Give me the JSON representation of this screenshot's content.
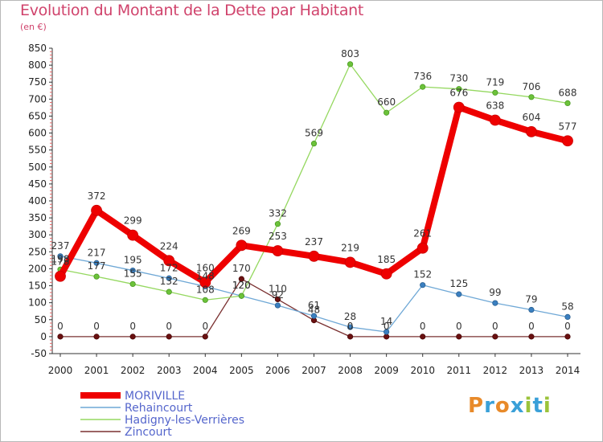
{
  "header": {
    "title": "Evolution du Montant de la Dette par Habitant",
    "unit": "(en €)"
  },
  "logo": {
    "letters": [
      "P",
      "r",
      "o",
      "x",
      "i",
      "t",
      "i"
    ],
    "colors": [
      "#e88a2a",
      "#3aa0d8",
      "#e88a2a",
      "#3aa0d8",
      "#9bc33b",
      "#3aa0d8",
      "#9bc33b"
    ]
  },
  "chart_data": {
    "type": "line",
    "title": "Evolution du Montant de la Dette par Habitant",
    "ylabel": "(en €)",
    "x": [
      2000,
      2001,
      2002,
      2003,
      2004,
      2005,
      2006,
      2007,
      2008,
      2009,
      2010,
      2011,
      2012,
      2013,
      2014
    ],
    "ylim": [
      -50,
      850
    ],
    "yticks": [
      -50,
      0,
      50,
      100,
      150,
      200,
      250,
      300,
      350,
      400,
      450,
      500,
      550,
      600,
      650,
      700,
      750,
      800,
      850
    ],
    "grid": false,
    "legend_position": "bottom-left",
    "series": [
      {
        "name": "MORIVILLE",
        "color": "#ee0000",
        "values": [
          178,
          372,
          299,
          224,
          160,
          269,
          253,
          237,
          219,
          185,
          261,
          676,
          638,
          604,
          577
        ]
      },
      {
        "name": "Rehaincourt",
        "color": "#6fa8d6",
        "values": [
          237,
          217,
          195,
          172,
          148,
          120,
          92,
          61,
          28,
          14,
          152,
          125,
          99,
          79,
          58
        ]
      },
      {
        "name": "Hadigny-les-Verrières",
        "color": "#8fd45a",
        "values": [
          198,
          177,
          155,
          132,
          108,
          120,
          332,
          569,
          803,
          660,
          736,
          730,
          719,
          706,
          688
        ]
      },
      {
        "name": "Zincourt",
        "color": "#7a3030",
        "values": [
          0,
          0,
          0,
          0,
          0,
          170,
          110,
          48,
          0,
          0,
          0,
          0,
          0,
          0,
          0
        ]
      }
    ]
  }
}
